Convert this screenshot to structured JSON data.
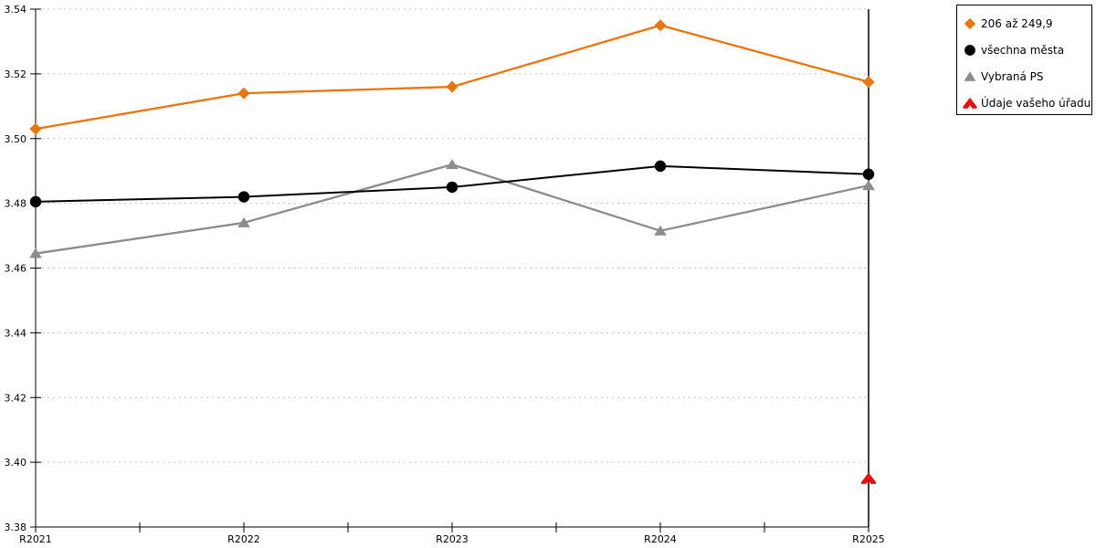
{
  "chart_data": {
    "type": "line",
    "categories": [
      "R2021",
      "R2022",
      "R2023",
      "R2024",
      "R2025"
    ],
    "series": [
      {
        "name": "206 až 249,9",
        "color": "#E8760E",
        "marker": "diamond",
        "values": [
          3.503,
          3.514,
          3.516,
          3.535,
          3.5175
        ]
      },
      {
        "name": "všechna města",
        "color": "#000000",
        "marker": "circle",
        "values": [
          3.4805,
          3.482,
          3.485,
          3.4915,
          3.489
        ]
      },
      {
        "name": "Vybraná PS",
        "color": "#8C8C8C",
        "marker": "triangle",
        "values": [
          3.4645,
          3.474,
          3.492,
          3.4715,
          3.4855
        ]
      },
      {
        "name": "Údaje vašeho úřadu",
        "color": "#E8100C",
        "marker": "home",
        "values": [
          null,
          null,
          null,
          null,
          3.395
        ]
      }
    ],
    "title": "",
    "xlabel": "",
    "ylabel": "",
    "ylim": [
      3.38,
      3.54
    ],
    "ytick_step": 0.02,
    "yticks": [
      3.38,
      3.4,
      3.42,
      3.44,
      3.46,
      3.48,
      3.5,
      3.52,
      3.54
    ],
    "grid": "horizontal-dotted",
    "gridline_color": "#C6C6C6",
    "axis_color": "#000000",
    "legend_position": "top-right",
    "right_border_line": true
  }
}
